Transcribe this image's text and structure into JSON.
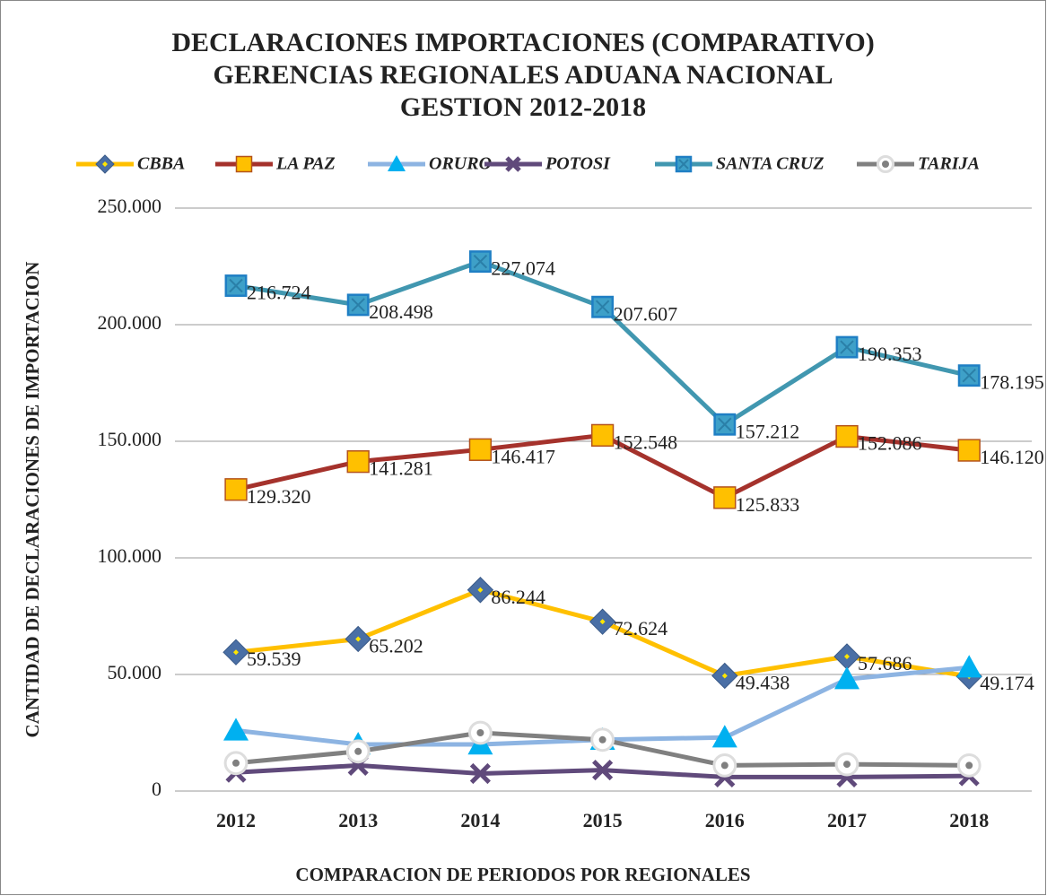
{
  "chart_data": {
    "type": "line",
    "title": [
      "DECLARACIONES IMPORTACIONES (COMPARATIVO)",
      "GERENCIAS REGIONALES ADUANA NACIONAL",
      "GESTION 2012-2018"
    ],
    "x_label": "COMPARACION DE PERIODOS POR REGIONALES",
    "y_label": "CANTIDAD DE DECLARACIONES DE IMPORTACION",
    "categories": [
      "2012",
      "2013",
      "2014",
      "2015",
      "2016",
      "2017",
      "2018"
    ],
    "ylim": [
      0,
      250000
    ],
    "yticks": [
      0,
      {
        "value": 50000,
        "label": "50.000"
      },
      {
        "value": 100000,
        "label": "100.000"
      },
      {
        "value": 150000,
        "label": "150.000"
      },
      {
        "value": 200000,
        "label": "200.000"
      },
      {
        "value": 250000,
        "label": "250.000"
      }
    ],
    "grid": true,
    "legend": "top",
    "series": [
      {
        "name": "CBBA",
        "color": "#ffc000",
        "marker": "diamond",
        "marker_color": "#4a6fa5",
        "values": [
          59539,
          65202,
          86244,
          72624,
          49438,
          57686,
          49174
        ],
        "value_labels": [
          "59.539",
          "65.202",
          "86.244",
          "72.624",
          "49.438",
          "57.686",
          "49.174"
        ]
      },
      {
        "name": "LA PAZ",
        "color": "#a5322c",
        "marker": "square",
        "marker_color": "#ffc000",
        "values": [
          129320,
          141281,
          146417,
          152548,
          125833,
          152086,
          146120
        ],
        "value_labels": [
          "129.320",
          "141.281",
          "146.417",
          "152.548",
          "125.833",
          "152.086",
          "146.120"
        ]
      },
      {
        "name": "ORURO",
        "color": "#8db4e2",
        "marker": "triangle",
        "marker_color": "#00b0f0",
        "values": [
          26000,
          20000,
          20000,
          22000,
          23000,
          48000,
          53000
        ]
      },
      {
        "name": "POTOSI",
        "color": "#604a7b",
        "marker": "x",
        "marker_color": "#604a7b",
        "values": [
          8000,
          11000,
          7500,
          9000,
          6000,
          6000,
          6500
        ]
      },
      {
        "name": "SANTA CRUZ",
        "color": "#4197b0",
        "marker": "squarex",
        "marker_color": "#1f7fc4",
        "values": [
          216724,
          208498,
          227074,
          207607,
          157212,
          190353,
          178195
        ],
        "value_labels": [
          "216.724",
          "208.498",
          "227.074",
          "207.607",
          "157.212",
          "190.353",
          "178.195"
        ]
      },
      {
        "name": "TARIJA",
        "color": "#808080",
        "marker": "circle",
        "marker_color": "#808080",
        "values": [
          12000,
          17000,
          25000,
          22000,
          11000,
          11500,
          11000
        ]
      }
    ]
  }
}
